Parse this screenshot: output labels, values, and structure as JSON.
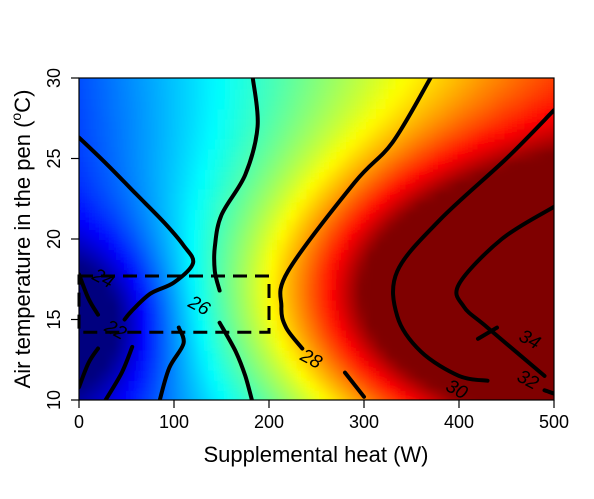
{
  "chart_data": {
    "type": "heatmap",
    "title": "",
    "xlabel": "Supplemental heat (W)",
    "ylabel_prefix": "Air temperature in the pen (",
    "ylabel_degree": "o",
    "ylabel_suffix": "C)",
    "xlim": [
      0,
      500
    ],
    "ylim": [
      10,
      30
    ],
    "x_ticks": [
      0,
      100,
      200,
      300,
      400,
      500
    ],
    "y_ticks": [
      10,
      15,
      20,
      25,
      30
    ],
    "colormap": [
      "#00007f",
      "#0000ff",
      "#007fff",
      "#00ffff",
      "#7fff7f",
      "#ffff00",
      "#ff7f00",
      "#ff0000",
      "#7f0000"
    ],
    "value_range": [
      20,
      36
    ],
    "grid": false,
    "legend": "none",
    "contours": [
      {
        "level": 24,
        "label": "24",
        "points": [
          [
            0,
            26.3
          ],
          [
            30,
            24.6
          ],
          [
            60,
            22.8
          ],
          [
            90,
            21
          ],
          [
            110,
            19.6
          ],
          [
            120,
            18.5
          ],
          [
            100,
            17.3
          ],
          [
            75,
            16.6
          ],
          [
            55,
            15.5
          ],
          [
            48,
            15
          ]
        ],
        "label_at": [
          25,
          17.5
        ]
      },
      {
        "level": 24,
        "label": "",
        "points": [
          [
            56,
            13.3
          ],
          [
            45,
            11.7
          ],
          [
            28,
            10
          ]
        ],
        "label_at": null
      },
      {
        "level": 22,
        "label": "22",
        "points": [
          [
            0,
            17.8
          ],
          [
            10,
            16.3
          ],
          [
            20,
            15.3
          ]
        ],
        "label_at": [
          38,
          14.3
        ]
      },
      {
        "level": 22,
        "label": "",
        "points": [
          [
            0,
            10.8
          ],
          [
            10,
            12.3
          ],
          [
            20,
            13.2
          ]
        ],
        "label_at": null
      },
      {
        "level": 24,
        "label": "",
        "points": [
          [
            85,
            10
          ],
          [
            95,
            12
          ],
          [
            110,
            13.5
          ],
          [
            105,
            14.5
          ]
        ],
        "label_at": null
      },
      {
        "level": 26,
        "label": "26",
        "points": [
          [
            183,
            30
          ],
          [
            188,
            27
          ],
          [
            175,
            24
          ],
          [
            150,
            21.5
          ],
          [
            143,
            19.5
          ],
          [
            143,
            18
          ],
          [
            148,
            16.8
          ]
        ],
        "label_at": [
          126,
          15.8
        ]
      },
      {
        "level": 26,
        "label": "",
        "points": [
          [
            148,
            14.8
          ],
          [
            165,
            13
          ],
          [
            175,
            11.5
          ],
          [
            182,
            10
          ]
        ],
        "label_at": null
      },
      {
        "level": 28,
        "label": "28",
        "points": [
          [
            370,
            30
          ],
          [
            330,
            26
          ],
          [
            290,
            23.5
          ],
          [
            220,
            18
          ],
          [
            213,
            15.8
          ],
          [
            218,
            14.5
          ],
          [
            235,
            13.2
          ]
        ],
        "label_at": [
          244,
          12.5
        ]
      },
      {
        "level": 28,
        "label": "",
        "points": [
          [
            280,
            11.7
          ],
          [
            300,
            10.2
          ]
        ],
        "label_at": null
      },
      {
        "level": 30,
        "label": "30",
        "points": [
          [
            500,
            28
          ],
          [
            450,
            25
          ],
          [
            380,
            21.2
          ],
          [
            335,
            18
          ],
          [
            335,
            15.2
          ],
          [
            360,
            13
          ],
          [
            400,
            11.5
          ],
          [
            430,
            11.2
          ]
        ],
        "label_at": [
          397,
          10.6
        ]
      },
      {
        "level": 32,
        "label": "32",
        "points": [
          [
            500,
            22
          ],
          [
            445,
            20
          ],
          [
            400,
            17.2
          ],
          [
            405,
            15.8
          ],
          [
            430,
            14.5
          ],
          [
            490,
            11.5
          ]
        ],
        "label_at": [
          472,
          11.2
        ]
      },
      {
        "level": 32,
        "label": "",
        "points": [
          [
            490,
            10.6
          ],
          [
            500,
            10.4
          ]
        ],
        "label_at": null
      },
      {
        "level": 34,
        "label": "34",
        "points": [
          [
            440,
            14.5
          ],
          [
            420,
            13.8
          ]
        ],
        "label_at": [
          474,
          13.7
        ]
      }
    ],
    "highlight_region": {
      "x": [
        0,
        200
      ],
      "y": [
        14.2,
        17.7
      ],
      "style": "dashed"
    }
  }
}
